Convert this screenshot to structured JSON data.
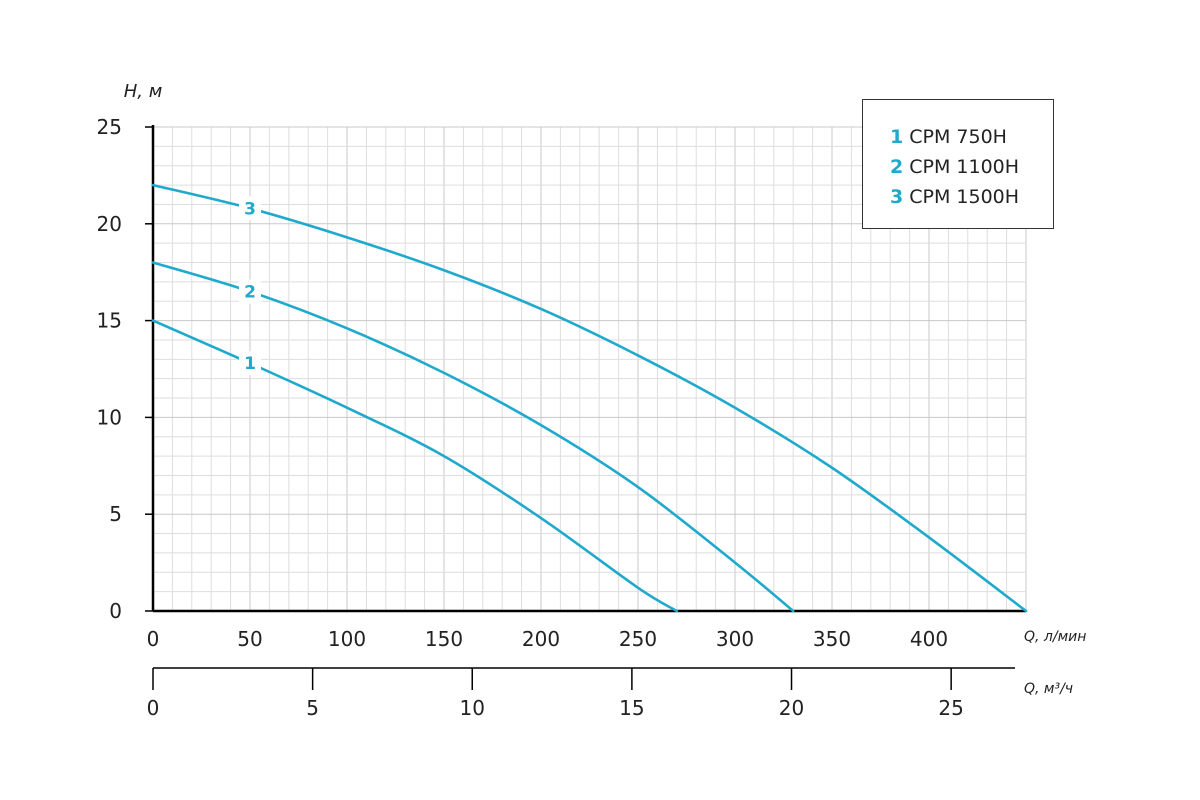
{
  "chart_data": {
    "type": "line",
    "ylabel": "H, м",
    "xlabel": "Q, л/мин",
    "x2label": "Q, м³/ч",
    "ylim": [
      0,
      25
    ],
    "xlim": [
      0,
      450
    ],
    "x2lim": [
      0,
      27
    ],
    "yticks": [
      "0",
      "5",
      "10",
      "15",
      "20",
      "25"
    ],
    "xticks": [
      "0",
      "50",
      "100",
      "150",
      "200",
      "250",
      "300",
      "350",
      "400"
    ],
    "x2ticks": [
      "0",
      "5",
      "10",
      "15",
      "20",
      "25"
    ],
    "grid": true,
    "legend_position": "top-right",
    "series": [
      {
        "name": "CPM 750H",
        "label": "1",
        "color": "#1fa9cc",
        "x": [
          0,
          50,
          100,
          150,
          200,
          250,
          270
        ],
        "y": [
          15,
          12.8,
          10.5,
          8.0,
          4.8,
          1.2,
          0
        ]
      },
      {
        "name": "CPM 1100H",
        "label": "2",
        "color": "#1fa9cc",
        "x": [
          0,
          50,
          100,
          150,
          200,
          250,
          300,
          330
        ],
        "y": [
          18,
          16.5,
          14.6,
          12.3,
          9.6,
          6.4,
          2.5,
          0
        ]
      },
      {
        "name": "CPM 1500H",
        "label": "3",
        "color": "#1fa9cc",
        "x": [
          0,
          50,
          100,
          150,
          200,
          250,
          300,
          350,
          400,
          450
        ],
        "y": [
          22,
          20.8,
          19.3,
          17.6,
          15.6,
          13.2,
          10.5,
          7.4,
          3.8,
          0
        ]
      }
    ]
  },
  "legend": [
    {
      "num": "1",
      "text": "CPM 750H"
    },
    {
      "num": "2",
      "text": "CPM 1100H"
    },
    {
      "num": "3",
      "text": "CPM 1500H"
    }
  ]
}
